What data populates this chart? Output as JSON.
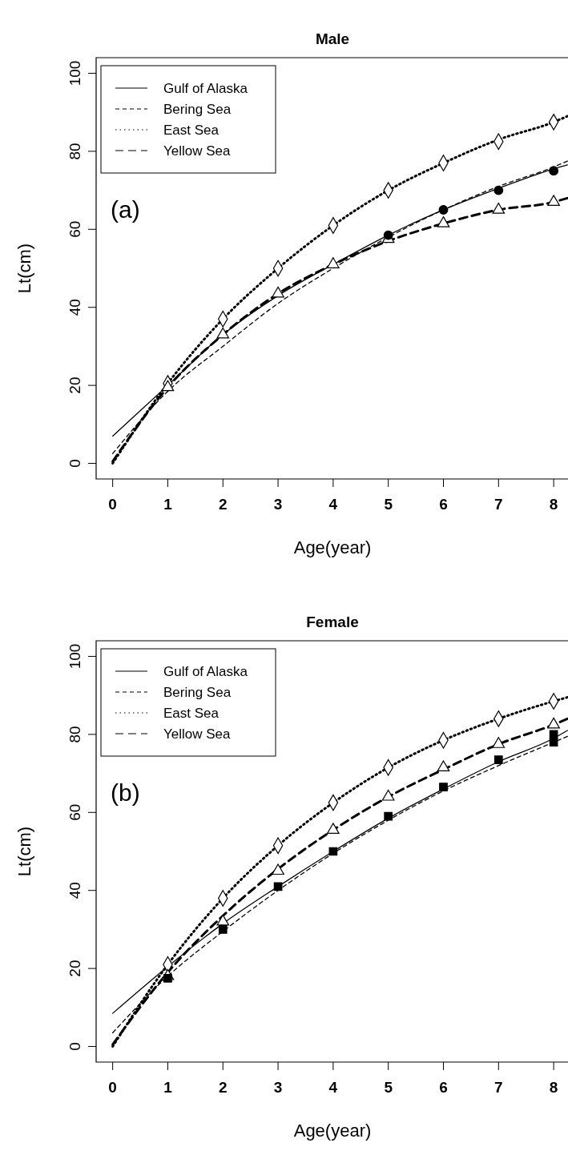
{
  "chart_data": [
    {
      "type": "line",
      "title": "Male",
      "xlabel": "Age(year)",
      "ylabel": "Lt(cm)",
      "annotations": [
        "(a)"
      ],
      "xlim": [
        -0.3,
        8.26
      ],
      "ylim": [
        -4,
        104
      ],
      "xticks": [
        0,
        1,
        2,
        3,
        4,
        5,
        6,
        7,
        8
      ],
      "yticks": [
        0,
        20,
        40,
        60,
        80,
        100
      ],
      "legend": "top left",
      "grid": false,
      "series": [
        {
          "name": "Gulf of Alaska",
          "color": "#000000",
          "line_style": "solid",
          "x": [
            0,
            1,
            2,
            3,
            4,
            5,
            6,
            7,
            8,
            8.25
          ],
          "values": [
            7,
            20,
            33,
            43,
            51,
            58.5,
            65,
            70.5,
            75.5,
            76.5
          ]
        },
        {
          "name": "Bering Sea",
          "color": "#000000",
          "line_style": "dashed",
          "x": [
            0,
            1,
            2,
            3,
            4,
            5,
            6,
            7,
            8,
            8.25
          ],
          "values": [
            2.5,
            18.5,
            30,
            41,
            50,
            58,
            65,
            71,
            76,
            77.5
          ]
        },
        {
          "name": "East Sea",
          "color": "#000000",
          "line_style": "dotted",
          "x": [
            0,
            1,
            2,
            3,
            4,
            5,
            6,
            7,
            8,
            8.25
          ],
          "values": [
            0,
            20.5,
            37,
            50,
            61,
            70,
            77,
            83,
            87.5,
            89
          ]
        },
        {
          "name": "Yellow Sea",
          "color": "#000000",
          "line_style": "longdash",
          "x": [
            0,
            1,
            2,
            3,
            4,
            5,
            6,
            7,
            8,
            8.25
          ],
          "values": [
            0.5,
            19.5,
            33,
            43.5,
            51,
            57,
            61.5,
            65,
            67,
            68
          ]
        },
        {
          "type": "scatter",
          "color": "#000000",
          "marker": "diamond",
          "x": [
            1,
            2,
            3,
            4,
            5,
            6,
            7,
            8
          ],
          "values": [
            20.5,
            37,
            50,
            61,
            70,
            77,
            82.5,
            87.5
          ]
        },
        {
          "type": "scatter",
          "color": "#000000",
          "marker": "circle",
          "x": [
            5,
            6,
            7,
            8
          ],
          "values": [
            58.5,
            65,
            70,
            75
          ]
        },
        {
          "type": "scatter",
          "color": "#000000",
          "marker": "triangle",
          "x": [
            1,
            2,
            3,
            4,
            5,
            6,
            7,
            8
          ],
          "values": [
            19.5,
            33,
            43.5,
            51,
            57.5,
            61.5,
            65,
            67
          ]
        }
      ]
    },
    {
      "type": "line",
      "title": "Female",
      "xlabel": "Age(year)",
      "ylabel": "Lt(cm)",
      "annotations": [
        "(b)"
      ],
      "xlim": [
        -0.3,
        8.26
      ],
      "ylim": [
        -4,
        104
      ],
      "xticks": [
        0,
        1,
        2,
        3,
        4,
        5,
        6,
        7,
        8
      ],
      "yticks": [
        0,
        20,
        40,
        60,
        80,
        100
      ],
      "legend": "top left",
      "grid": false,
      "series": [
        {
          "name": "Gulf of Alaska",
          "color": "#000000",
          "line_style": "solid",
          "x": [
            0,
            1,
            2,
            3,
            4,
            5,
            6,
            7,
            8,
            8.25
          ],
          "values": [
            8.5,
            20.5,
            31.5,
            41,
            50,
            58.5,
            66,
            73,
            79,
            81
          ]
        },
        {
          "name": "Bering Sea",
          "color": "#000000",
          "line_style": "dashed",
          "x": [
            0,
            1,
            2,
            3,
            4,
            5,
            6,
            7,
            8,
            8.25
          ],
          "values": [
            3.5,
            18,
            29.5,
            40,
            49.5,
            58,
            65.5,
            72,
            78,
            79.5
          ]
        },
        {
          "name": "East Sea",
          "color": "#000000",
          "line_style": "dotted",
          "x": [
            0,
            1,
            2,
            3,
            4,
            5,
            6,
            7,
            8,
            8.25
          ],
          "values": [
            0,
            21,
            38,
            51.5,
            62.5,
            71.5,
            78.5,
            84,
            88.5,
            89.5
          ]
        },
        {
          "name": "Yellow Sea",
          "color": "#000000",
          "line_style": "longdash",
          "x": [
            0,
            1,
            2,
            3,
            4,
            5,
            6,
            7,
            8,
            8.25
          ],
          "values": [
            0.5,
            19,
            33.5,
            45.5,
            55.5,
            64,
            71,
            77.5,
            82.5,
            84
          ]
        },
        {
          "type": "scatter",
          "color": "#000000",
          "marker": "diamond",
          "x": [
            1,
            2,
            3,
            4,
            5,
            6,
            7,
            8
          ],
          "values": [
            21,
            38,
            51.5,
            62.5,
            71.5,
            78.5,
            84,
            88.5
          ]
        },
        {
          "type": "scatter",
          "color": "#000000",
          "marker": "square",
          "x": [
            1,
            2,
            3,
            4,
            5,
            6,
            7,
            8
          ],
          "values": [
            17.5,
            30,
            41,
            50,
            59,
            66.5,
            73.5,
            80
          ]
        },
        {
          "type": "scatter",
          "color": "#000000",
          "marker": "square",
          "x": [
            8
          ],
          "values": [
            78
          ]
        },
        {
          "type": "scatter",
          "color": "#000000",
          "marker": "triangle",
          "x": [
            1,
            2,
            3,
            4,
            5,
            6,
            7,
            8
          ],
          "values": [
            18,
            32,
            45,
            55.5,
            64,
            71.5,
            77.5,
            82.5
          ]
        }
      ]
    }
  ]
}
